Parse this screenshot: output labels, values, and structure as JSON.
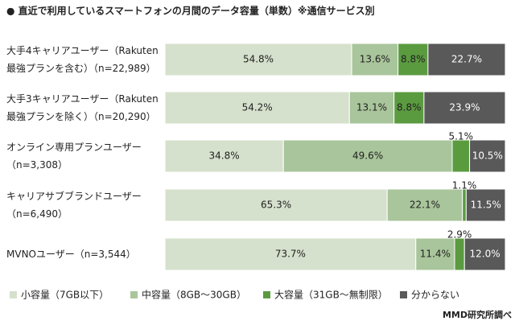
{
  "chart_data": {
    "type": "stacked-bar-horizontal",
    "title": "●  直近で利用しているスマートフォンの月間のデータ容量（単数）※通信サービス別",
    "categories": [
      "大手4キャリアユーザー（Rakuten\n最強プランを含む）（n=22,989）",
      "大手3キャリアユーザー（Rakuten\n最強プランを除く）（n=20,290）",
      "オンライン専用プランユーザー\n（n=3,308）",
      "キャリアサブブランドユーザー\n（n=6,490）",
      "MVNOユーザー（n=3,544）"
    ],
    "series": [
      {
        "name": "小容量（7GB以下）",
        "color": "#d6e1cd",
        "values": [
          54.8,
          54.2,
          34.8,
          65.3,
          73.7
        ],
        "value_labels": [
          "54.8%",
          "54.2%",
          "34.8%",
          "65.3%",
          "73.7%"
        ]
      },
      {
        "name": "中容量（8GB～30GB）",
        "color": "#a9c59b",
        "values": [
          13.6,
          13.1,
          49.6,
          22.1,
          11.4
        ],
        "value_labels": [
          "13.6%",
          "13.1%",
          "49.6%",
          "22.1%",
          "11.4%"
        ]
      },
      {
        "name": "大容量（31GB～無制限）",
        "color": "#5b9b40",
        "values": [
          8.8,
          8.8,
          5.1,
          1.1,
          2.9
        ],
        "value_labels": [
          "8.8%",
          "8.8%",
          "5.1%",
          "1.1%",
          "2.9%"
        ]
      },
      {
        "name": "分からない",
        "color": "#595959",
        "values": [
          22.7,
          23.9,
          10.5,
          11.5,
          12.0
        ],
        "value_labels": [
          "22.7%",
          "23.9%",
          "10.5%",
          "11.5%",
          "12.0%"
        ]
      }
    ],
    "source": "MMD研究所調べ"
  }
}
